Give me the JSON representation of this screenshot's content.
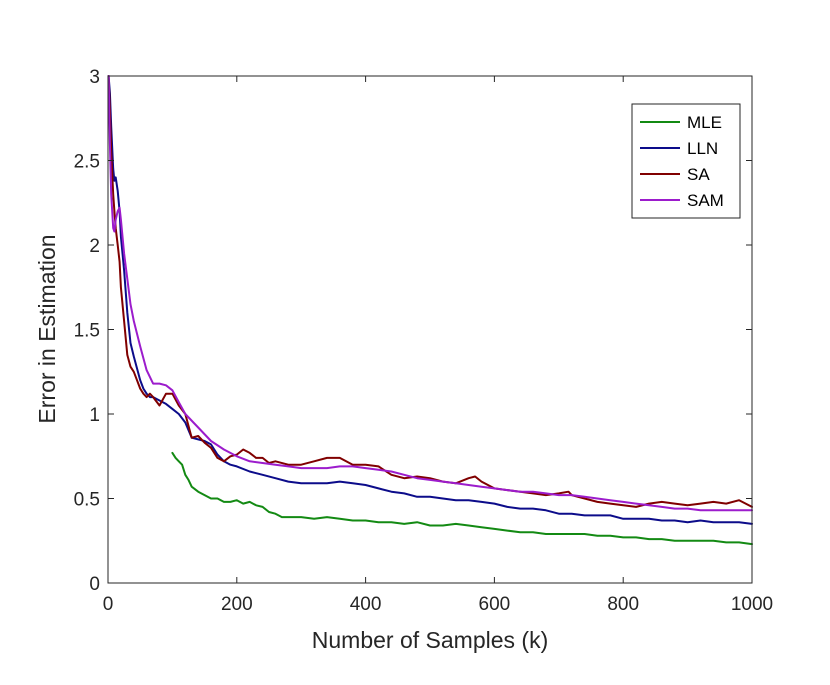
{
  "chart_data": {
    "type": "line",
    "title": "",
    "xlabel": "Number of Samples (k)",
    "ylabel": "Error in Estimation",
    "xlim": [
      0,
      1000
    ],
    "ylim": [
      0,
      3
    ],
    "xticks": [
      0,
      200,
      400,
      600,
      800,
      1000
    ],
    "yticks": [
      0,
      0.5,
      1,
      1.5,
      2,
      2.5,
      3
    ],
    "xtick_labels": [
      "0",
      "200",
      "400",
      "600",
      "800",
      "1000"
    ],
    "ytick_labels": [
      "0",
      "0.5",
      "1",
      "1.5",
      "2",
      "2.5",
      "3"
    ],
    "grid": false,
    "legend_position": "top-right",
    "series": [
      {
        "name": "MLE",
        "color": "#138a13",
        "x": [
          100,
          105,
          110,
          115,
          120,
          125,
          130,
          140,
          150,
          160,
          170,
          180,
          190,
          200,
          210,
          220,
          230,
          240,
          250,
          260,
          270,
          280,
          300,
          320,
          340,
          360,
          380,
          400,
          420,
          440,
          460,
          480,
          500,
          520,
          540,
          560,
          580,
          600,
          620,
          640,
          660,
          680,
          700,
          720,
          740,
          760,
          780,
          800,
          820,
          840,
          860,
          880,
          900,
          920,
          940,
          960,
          980,
          1000
        ],
        "values": [
          0.77,
          0.74,
          0.72,
          0.7,
          0.64,
          0.61,
          0.57,
          0.54,
          0.52,
          0.5,
          0.5,
          0.48,
          0.48,
          0.49,
          0.47,
          0.48,
          0.46,
          0.45,
          0.42,
          0.41,
          0.39,
          0.39,
          0.39,
          0.38,
          0.39,
          0.38,
          0.37,
          0.37,
          0.36,
          0.36,
          0.35,
          0.36,
          0.34,
          0.34,
          0.35,
          0.34,
          0.33,
          0.32,
          0.31,
          0.3,
          0.3,
          0.29,
          0.29,
          0.29,
          0.29,
          0.28,
          0.28,
          0.27,
          0.27,
          0.26,
          0.26,
          0.25,
          0.25,
          0.25,
          0.25,
          0.24,
          0.24,
          0.23
        ]
      },
      {
        "name": "LLN",
        "color": "#0c0c8a",
        "x": [
          1,
          3,
          5,
          8,
          10,
          12,
          15,
          18,
          20,
          25,
          30,
          35,
          40,
          45,
          50,
          55,
          60,
          65,
          70,
          80,
          90,
          100,
          110,
          120,
          130,
          140,
          150,
          160,
          170,
          180,
          190,
          200,
          220,
          240,
          260,
          280,
          300,
          320,
          340,
          360,
          380,
          400,
          420,
          440,
          460,
          480,
          500,
          520,
          540,
          560,
          580,
          600,
          620,
          640,
          660,
          680,
          700,
          720,
          740,
          760,
          780,
          800,
          820,
          840,
          860,
          880,
          900,
          920,
          940,
          960,
          980,
          1000
        ],
        "values": [
          3.0,
          2.9,
          2.7,
          2.45,
          2.38,
          2.4,
          2.32,
          2.2,
          2.05,
          1.85,
          1.6,
          1.42,
          1.34,
          1.27,
          1.2,
          1.15,
          1.12,
          1.1,
          1.1,
          1.08,
          1.06,
          1.03,
          1.0,
          0.95,
          0.86,
          0.85,
          0.84,
          0.82,
          0.76,
          0.72,
          0.7,
          0.69,
          0.66,
          0.64,
          0.62,
          0.6,
          0.59,
          0.59,
          0.59,
          0.6,
          0.59,
          0.58,
          0.56,
          0.54,
          0.53,
          0.51,
          0.51,
          0.5,
          0.49,
          0.49,
          0.48,
          0.47,
          0.45,
          0.44,
          0.44,
          0.43,
          0.41,
          0.41,
          0.4,
          0.4,
          0.4,
          0.38,
          0.38,
          0.38,
          0.37,
          0.37,
          0.36,
          0.37,
          0.36,
          0.36,
          0.36,
          0.35
        ]
      },
      {
        "name": "SA",
        "color": "#800000",
        "x": [
          1,
          3,
          5,
          8,
          10,
          12,
          15,
          18,
          20,
          25,
          30,
          35,
          40,
          45,
          50,
          55,
          60,
          65,
          70,
          80,
          90,
          100,
          110,
          120,
          130,
          140,
          150,
          160,
          170,
          180,
          190,
          200,
          210,
          220,
          230,
          240,
          250,
          260,
          280,
          300,
          320,
          340,
          360,
          380,
          400,
          420,
          440,
          460,
          480,
          500,
          520,
          540,
          560,
          570,
          580,
          600,
          620,
          640,
          660,
          680,
          700,
          715,
          720,
          740,
          760,
          780,
          800,
          820,
          840,
          860,
          880,
          900,
          920,
          940,
          960,
          980,
          1000
        ],
        "values": [
          3.0,
          2.8,
          2.55,
          2.3,
          2.2,
          2.1,
          2.0,
          1.9,
          1.75,
          1.55,
          1.35,
          1.28,
          1.25,
          1.2,
          1.15,
          1.12,
          1.1,
          1.12,
          1.1,
          1.05,
          1.12,
          1.12,
          1.05,
          1.0,
          0.86,
          0.87,
          0.83,
          0.8,
          0.74,
          0.72,
          0.75,
          0.76,
          0.79,
          0.77,
          0.74,
          0.74,
          0.71,
          0.72,
          0.7,
          0.7,
          0.72,
          0.74,
          0.74,
          0.7,
          0.7,
          0.69,
          0.64,
          0.62,
          0.63,
          0.62,
          0.6,
          0.59,
          0.62,
          0.63,
          0.6,
          0.56,
          0.55,
          0.54,
          0.53,
          0.52,
          0.53,
          0.54,
          0.52,
          0.5,
          0.48,
          0.47,
          0.46,
          0.45,
          0.47,
          0.48,
          0.47,
          0.46,
          0.47,
          0.48,
          0.47,
          0.49,
          0.45
        ]
      },
      {
        "name": "SAM",
        "color": "#9c1ccc",
        "x": [
          1,
          3,
          5,
          8,
          10,
          12,
          15,
          18,
          20,
          25,
          30,
          35,
          40,
          50,
          60,
          70,
          80,
          90,
          100,
          110,
          120,
          140,
          160,
          180,
          200,
          220,
          240,
          260,
          280,
          300,
          320,
          340,
          360,
          380,
          400,
          420,
          440,
          460,
          480,
          500,
          520,
          540,
          560,
          580,
          600,
          620,
          640,
          660,
          680,
          700,
          720,
          740,
          760,
          780,
          800,
          820,
          840,
          860,
          880,
          900,
          920,
          940,
          960,
          980,
          1000
        ],
        "values": [
          3.0,
          2.6,
          2.3,
          2.1,
          2.08,
          2.15,
          2.2,
          2.22,
          2.15,
          1.95,
          1.8,
          1.65,
          1.55,
          1.4,
          1.26,
          1.18,
          1.18,
          1.17,
          1.14,
          1.07,
          1.0,
          0.92,
          0.84,
          0.79,
          0.75,
          0.72,
          0.71,
          0.7,
          0.69,
          0.68,
          0.68,
          0.68,
          0.69,
          0.69,
          0.68,
          0.67,
          0.66,
          0.64,
          0.62,
          0.61,
          0.6,
          0.59,
          0.58,
          0.57,
          0.56,
          0.55,
          0.54,
          0.54,
          0.53,
          0.52,
          0.52,
          0.51,
          0.5,
          0.49,
          0.48,
          0.47,
          0.46,
          0.45,
          0.44,
          0.44,
          0.43,
          0.43,
          0.43,
          0.43,
          0.43
        ]
      }
    ]
  }
}
